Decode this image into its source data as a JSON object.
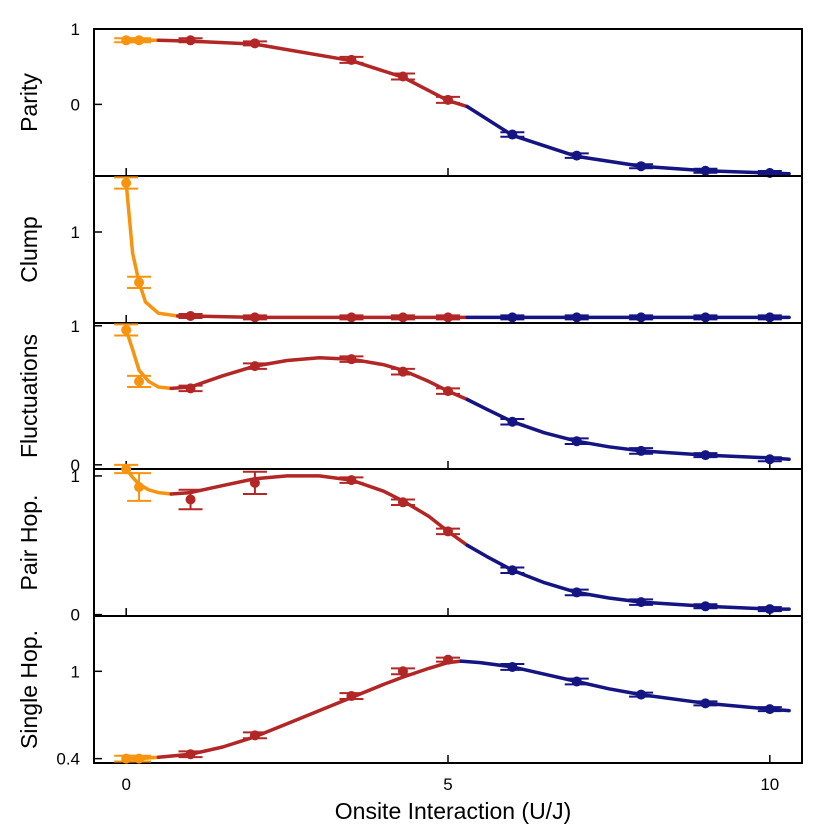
{
  "figure": {
    "xlabel": "Onsite Interaction (U/J)",
    "xticks": [
      0,
      5,
      10
    ],
    "xlim": [
      -0.5,
      10.5
    ]
  },
  "colors": {
    "orange": "#f7940f",
    "red": "#b32626",
    "blue": "#141482",
    "frame": "#000000"
  },
  "chart_data": [
    {
      "type": "line",
      "ylabel": "Parity",
      "ylim": [
        -0.95,
        1.0
      ],
      "yticks": [
        {
          "v": 1,
          "label": "1"
        },
        {
          "v": 0,
          "label": "0"
        }
      ],
      "segments": [
        {
          "color": "orange",
          "x": [
            0,
            0.2,
            0.5
          ],
          "y": [
            0.85,
            0.85,
            0.85
          ]
        },
        {
          "color": "red",
          "x": [
            0.5,
            1,
            2,
            3.5,
            4.3,
            5,
            5.3
          ],
          "y": [
            0.85,
            0.84,
            0.8,
            0.58,
            0.36,
            0.05,
            -0.03
          ]
        },
        {
          "color": "blue",
          "x": [
            5.3,
            6,
            7,
            8,
            9,
            10,
            10.3
          ],
          "y": [
            -0.03,
            -0.41,
            -0.69,
            -0.82,
            -0.88,
            -0.91,
            -0.92
          ]
        }
      ],
      "points": [
        {
          "color": "orange",
          "x": [
            0,
            0.2
          ],
          "y": [
            0.85,
            0.85
          ],
          "err": [
            0.02,
            0.02
          ]
        },
        {
          "color": "red",
          "x": [
            1,
            2,
            3.5,
            4.3,
            5
          ],
          "y": [
            0.85,
            0.81,
            0.59,
            0.37,
            0.06
          ],
          "err": [
            0.02,
            0.02,
            0.04,
            0.04,
            0.04
          ]
        },
        {
          "color": "blue",
          "x": [
            6,
            7,
            8,
            9,
            10
          ],
          "y": [
            -0.4,
            -0.68,
            -0.82,
            -0.88,
            -0.91
          ],
          "err": [
            0.03,
            0.03,
            0.02,
            0.02,
            0.02
          ]
        }
      ]
    },
    {
      "type": "line",
      "ylabel": "Clump",
      "ylim": [
        0.35,
        1.4
      ],
      "yticks": [
        {
          "v": 1,
          "label": "1"
        }
      ],
      "segments": [
        {
          "color": "orange",
          "x": [
            0,
            0.05,
            0.1,
            0.2,
            0.3,
            0.5,
            0.8
          ],
          "y": [
            1.35,
            1.1,
            0.85,
            0.64,
            0.5,
            0.42,
            0.4
          ]
        },
        {
          "color": "red",
          "x": [
            0.8,
            1,
            2,
            3.5,
            4.3,
            5,
            5.3
          ],
          "y": [
            0.4,
            0.4,
            0.39,
            0.39,
            0.39,
            0.39,
            0.39
          ]
        },
        {
          "color": "blue",
          "x": [
            5.3,
            6,
            7,
            8,
            9,
            10,
            10.3
          ],
          "y": [
            0.39,
            0.39,
            0.39,
            0.39,
            0.39,
            0.39,
            0.39
          ]
        }
      ],
      "points": [
        {
          "color": "orange",
          "x": [
            0,
            0.2
          ],
          "y": [
            1.35,
            0.64
          ],
          "err": [
            0.04,
            0.04
          ]
        },
        {
          "color": "red",
          "x": [
            1,
            2,
            3.5,
            4.3,
            5
          ],
          "y": [
            0.4,
            0.39,
            0.39,
            0.39,
            0.39
          ],
          "err": [
            0.01,
            0.01,
            0.01,
            0.01,
            0.01
          ]
        },
        {
          "color": "blue",
          "x": [
            6,
            7,
            8,
            9,
            10
          ],
          "y": [
            0.39,
            0.39,
            0.39,
            0.39,
            0.39
          ],
          "err": [
            0.01,
            0.01,
            0.01,
            0.01,
            0.01
          ]
        }
      ]
    },
    {
      "type": "line",
      "ylabel": "Fluctuations",
      "ylim": [
        -0.03,
        1.02
      ],
      "yticks": [
        {
          "v": 1,
          "label": "1"
        },
        {
          "v": 0,
          "label": "0"
        }
      ],
      "segments": [
        {
          "color": "orange",
          "x": [
            0,
            0.1,
            0.2,
            0.35,
            0.5,
            0.7
          ],
          "y": [
            0.97,
            0.83,
            0.68,
            0.6,
            0.56,
            0.55
          ]
        },
        {
          "color": "red",
          "x": [
            0.7,
            1,
            1.5,
            2,
            2.5,
            3,
            3.5,
            4,
            4.3,
            4.7,
            5,
            5.3
          ],
          "y": [
            0.55,
            0.56,
            0.64,
            0.71,
            0.75,
            0.77,
            0.76,
            0.72,
            0.68,
            0.6,
            0.53,
            0.47
          ]
        },
        {
          "color": "blue",
          "x": [
            5.3,
            5.6,
            6,
            6.5,
            7,
            7.5,
            8,
            9,
            10,
            10.3
          ],
          "y": [
            0.47,
            0.4,
            0.31,
            0.23,
            0.17,
            0.13,
            0.1,
            0.07,
            0.05,
            0.04
          ]
        }
      ],
      "points": [
        {
          "color": "orange",
          "x": [
            0,
            0.2
          ],
          "y": [
            0.97,
            0.6
          ],
          "err": [
            0.04,
            0.04
          ]
        },
        {
          "color": "red",
          "x": [
            1,
            2,
            3.5,
            4.3,
            5
          ],
          "y": [
            0.55,
            0.71,
            0.76,
            0.67,
            0.53
          ],
          "err": [
            0.02,
            0.02,
            0.02,
            0.02,
            0.02
          ]
        },
        {
          "color": "blue",
          "x": [
            6,
            7,
            8,
            9,
            10
          ],
          "y": [
            0.31,
            0.17,
            0.1,
            0.07,
            0.04
          ],
          "err": [
            0.02,
            0.02,
            0.02,
            0.01,
            0.01
          ]
        }
      ]
    },
    {
      "type": "line",
      "ylabel": "Pair Hop.",
      "ylim": [
        -0.01,
        1.05
      ],
      "yticks": [
        {
          "v": 1,
          "label": "1"
        },
        {
          "v": 0,
          "label": "0"
        }
      ],
      "segments": [
        {
          "color": "orange",
          "x": [
            0,
            0.1,
            0.2,
            0.35,
            0.5,
            0.7
          ],
          "y": [
            1.05,
            0.99,
            0.94,
            0.9,
            0.88,
            0.87
          ]
        },
        {
          "color": "red",
          "x": [
            0.7,
            1,
            1.5,
            2,
            2.5,
            3,
            3.5,
            4,
            4.3,
            4.7,
            5,
            5.3
          ],
          "y": [
            0.87,
            0.88,
            0.93,
            0.98,
            1.0,
            1.0,
            0.97,
            0.89,
            0.82,
            0.71,
            0.6,
            0.5
          ]
        },
        {
          "color": "blue",
          "x": [
            5.3,
            5.6,
            6,
            6.5,
            7,
            7.5,
            8,
            9,
            10,
            10.3
          ],
          "y": [
            0.5,
            0.42,
            0.32,
            0.23,
            0.16,
            0.12,
            0.09,
            0.06,
            0.04,
            0.04
          ]
        }
      ],
      "points": [
        {
          "color": "orange",
          "x": [
            0,
            0.2
          ],
          "y": [
            1.05,
            0.92
          ],
          "err": [
            0.03,
            0.1
          ]
        },
        {
          "color": "red",
          "x": [
            1,
            2,
            3.5,
            4.3,
            5
          ],
          "y": [
            0.83,
            0.95,
            0.97,
            0.81,
            0.6
          ],
          "err": [
            0.07,
            0.08,
            0.02,
            0.02,
            0.02
          ]
        },
        {
          "color": "blue",
          "x": [
            6,
            7,
            8,
            9,
            10
          ],
          "y": [
            0.32,
            0.16,
            0.09,
            0.06,
            0.04
          ],
          "err": [
            0.02,
            0.02,
            0.02,
            0.01,
            0.01
          ]
        }
      ]
    },
    {
      "type": "line",
      "ylabel": "Single Hop.",
      "ylim": [
        0.37,
        1.38
      ],
      "yticks": [
        {
          "v": 1,
          "label": "1"
        },
        {
          "v": 0.4,
          "label": "0.4"
        }
      ],
      "segments": [
        {
          "color": "orange",
          "x": [
            0,
            0.2,
            0.5
          ],
          "y": [
            0.4,
            0.4,
            0.41
          ]
        },
        {
          "color": "red",
          "x": [
            0.5,
            1,
            1.5,
            2,
            2.5,
            3,
            3.5,
            4,
            4.3,
            4.7,
            5,
            5.2
          ],
          "y": [
            0.41,
            0.43,
            0.48,
            0.55,
            0.64,
            0.73,
            0.82,
            0.91,
            0.96,
            1.02,
            1.06,
            1.07
          ]
        },
        {
          "color": "blue",
          "x": [
            5.2,
            5.5,
            6,
            6.5,
            7,
            7.5,
            8,
            9,
            10,
            10.3
          ],
          "y": [
            1.07,
            1.06,
            1.03,
            0.98,
            0.93,
            0.88,
            0.84,
            0.78,
            0.74,
            0.73
          ]
        }
      ],
      "points": [
        {
          "color": "orange",
          "x": [
            0,
            0.2
          ],
          "y": [
            0.4,
            0.4
          ],
          "err": [
            0.02,
            0.02
          ]
        },
        {
          "color": "red",
          "x": [
            1,
            2,
            3.5,
            4.3,
            5
          ],
          "y": [
            0.43,
            0.56,
            0.83,
            1.0,
            1.08
          ],
          "err": [
            0.02,
            0.02,
            0.02,
            0.02,
            0.01
          ]
        },
        {
          "color": "blue",
          "x": [
            6,
            7,
            8,
            9,
            10
          ],
          "y": [
            1.03,
            0.93,
            0.84,
            0.78,
            0.74
          ],
          "err": [
            0.02,
            0.02,
            0.01,
            0.01,
            0.01
          ]
        }
      ]
    }
  ]
}
